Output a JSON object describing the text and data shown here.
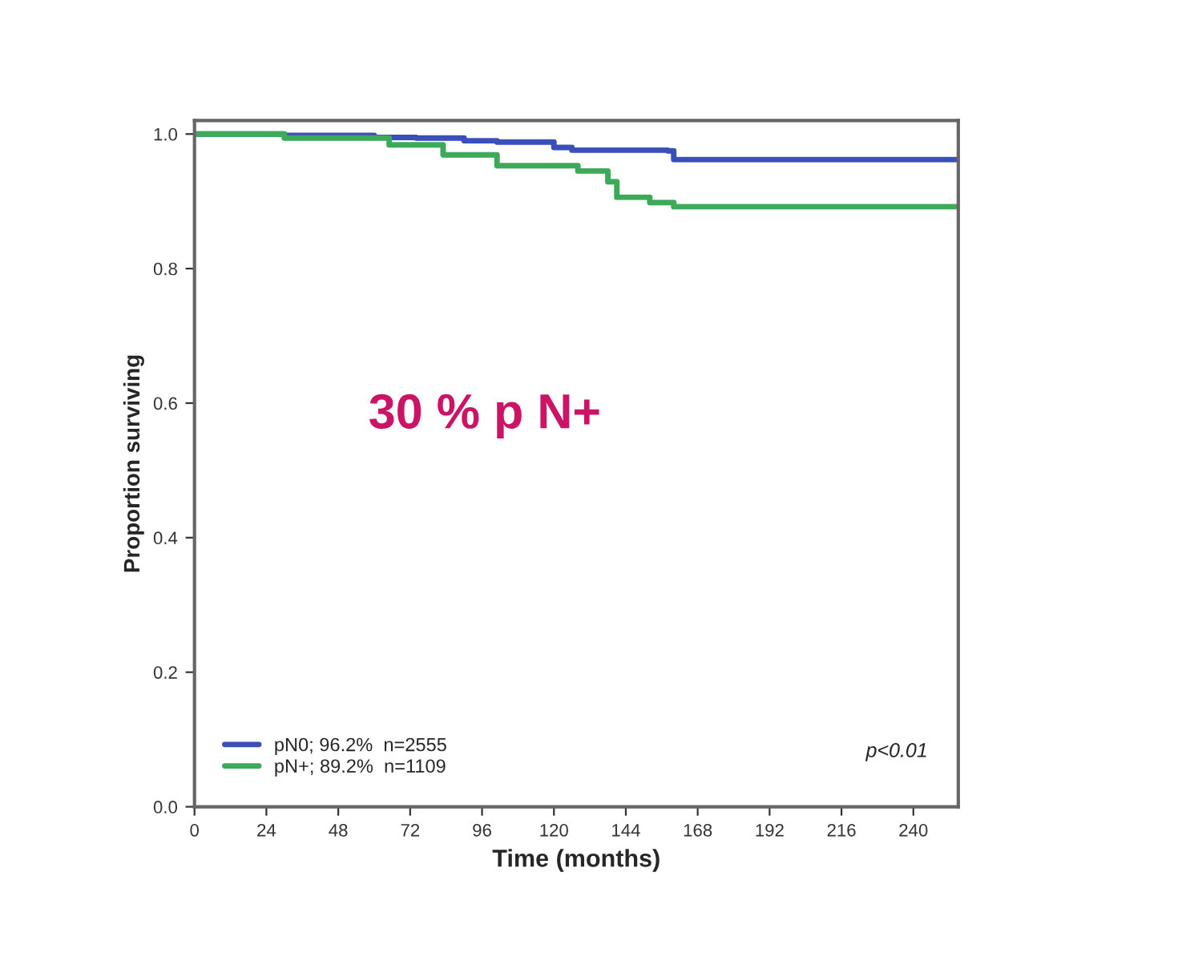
{
  "chart_data": {
    "type": "step",
    "xlabel": "Time (months)",
    "ylabel": "Proportion surviving",
    "series": [
      {
        "name": "pN0; 96.2%  n=2555",
        "color": "#3b4fb8",
        "x": [
          0,
          30,
          60,
          74,
          90,
          101,
          120,
          126,
          158,
          160,
          255
        ],
        "values": [
          1.0,
          0.998,
          0.995,
          0.994,
          0.99,
          0.988,
          0.98,
          0.976,
          0.975,
          0.962,
          0.962
        ]
      },
      {
        "name": "pN+; 89.2%  n=1109",
        "color": "#3daa5a",
        "x": [
          0,
          30,
          65,
          83,
          101,
          128,
          138,
          141,
          152,
          160,
          255
        ],
        "values": [
          1.0,
          0.994,
          0.984,
          0.969,
          0.953,
          0.945,
          0.929,
          0.906,
          0.898,
          0.892,
          0.892
        ]
      }
    ],
    "xlim": [
      0,
      255
    ],
    "ylim": [
      0,
      1.02
    ],
    "xticks": [
      0,
      24,
      48,
      72,
      96,
      120,
      144,
      168,
      192,
      216,
      240
    ],
    "yticks": [
      {
        "value": 0,
        "label": "0.0"
      },
      {
        "value": 0.2,
        "label": "0.2"
      },
      {
        "value": 0.4,
        "label": "0.4"
      },
      {
        "value": 0.6,
        "label": "0.6"
      },
      {
        "value": 0.8,
        "label": "0.8"
      },
      {
        "value": 1.0,
        "label": "1.0"
      }
    ],
    "annotations": [
      "30 % p N+",
      "p<0.01"
    ],
    "legend": "bottom left",
    "grid": false
  }
}
